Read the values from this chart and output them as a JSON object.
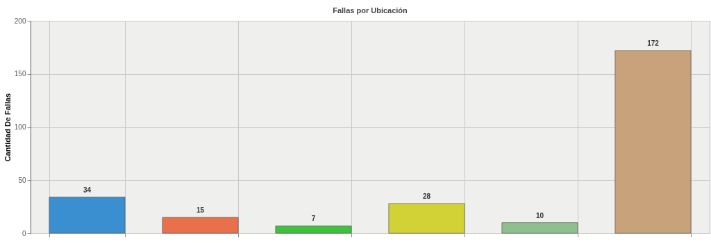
{
  "chart_data": {
    "type": "bar",
    "title": "Fallas por Ubicación",
    "ylabel": "Cantidad De Fallas",
    "categories": [
      null,
      null,
      null,
      null,
      null,
      null
    ],
    "values": [
      34,
      15,
      7,
      28,
      10,
      172
    ],
    "colors": [
      "#3a8fd0",
      "#e8704a",
      "#3cc23c",
      "#d2d236",
      "#8fbf8f",
      "#c8a27a"
    ],
    "ylim": [
      0,
      200
    ],
    "yticks": [
      0,
      50,
      100,
      150,
      200
    ],
    "grid": true,
    "data_labels": true,
    "tick_labels": "y"
  }
}
